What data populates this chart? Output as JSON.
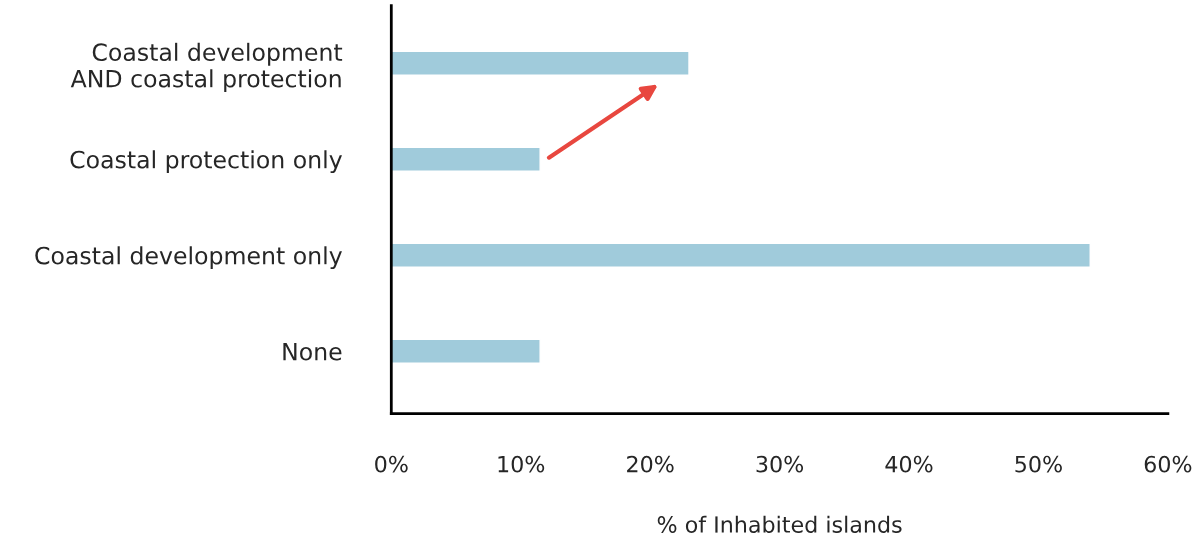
{
  "chart_data": {
    "type": "bar",
    "orientation": "horizontal",
    "xlabel": "% of Inhabited islands",
    "categories": [
      "Coastal development\nAND coastal protection",
      "Coastal protection only",
      "Coastal development only",
      "None"
    ],
    "values": [
      23,
      11.5,
      54,
      11.5
    ],
    "color": "#a0cbdb",
    "xlim": [
      0,
      60
    ],
    "xticks": [
      {
        "value": 0,
        "label": "0%"
      },
      {
        "value": 10,
        "label": "10%"
      },
      {
        "value": 20,
        "label": "20%"
      },
      {
        "value": 30,
        "label": "30%"
      },
      {
        "value": 40,
        "label": "40%"
      },
      {
        "value": 50,
        "label": "50%"
      },
      {
        "value": 60,
        "label": "60%"
      }
    ],
    "grid": false,
    "legend": false
  }
}
